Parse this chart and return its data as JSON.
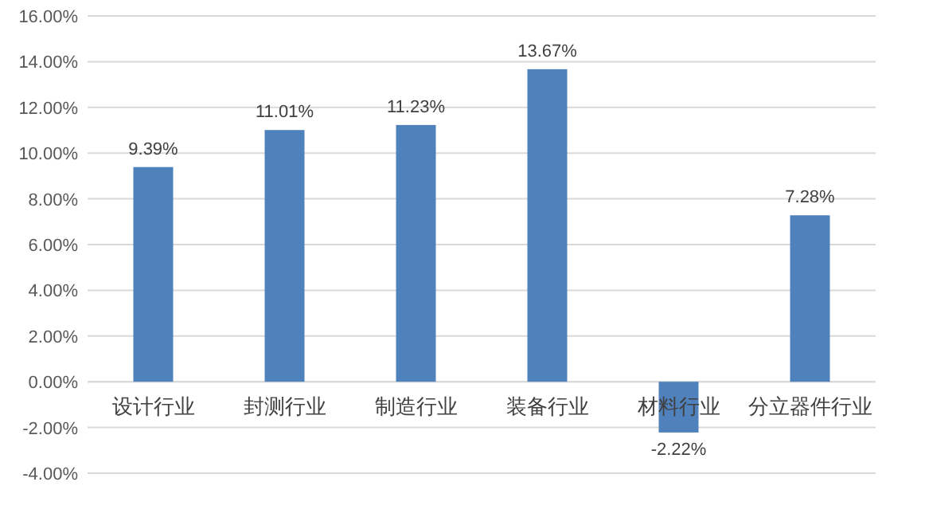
{
  "chart_data": {
    "type": "bar",
    "categories": [
      "设计行业",
      "封测行业",
      "制造行业",
      "装备行业",
      "材料行业",
      "分立器件行业"
    ],
    "values": [
      9.39,
      11.01,
      11.23,
      13.67,
      -2.22,
      7.28
    ],
    "value_labels": [
      "9.39%",
      "11.01%",
      "11.23%",
      "13.67%",
      "-2.22%",
      "7.28%"
    ],
    "color": "#4f81bd",
    "ylim": [
      -4,
      16
    ],
    "yticks": [
      {
        "value": -4,
        "label": "-4.00%"
      },
      {
        "value": -2,
        "label": "-2.00%"
      },
      {
        "value": 0,
        "label": "0.00%"
      },
      {
        "value": 2,
        "label": "2.00%"
      },
      {
        "value": 4,
        "label": "4.00%"
      },
      {
        "value": 6,
        "label": "6.00%"
      },
      {
        "value": 8,
        "label": "8.00%"
      },
      {
        "value": 10,
        "label": "10.00%"
      },
      {
        "value": 12,
        "label": "12.00%"
      },
      {
        "value": 14,
        "label": "14.00%"
      },
      {
        "value": 16,
        "label": "16.00%"
      }
    ],
    "grid": "y"
  }
}
